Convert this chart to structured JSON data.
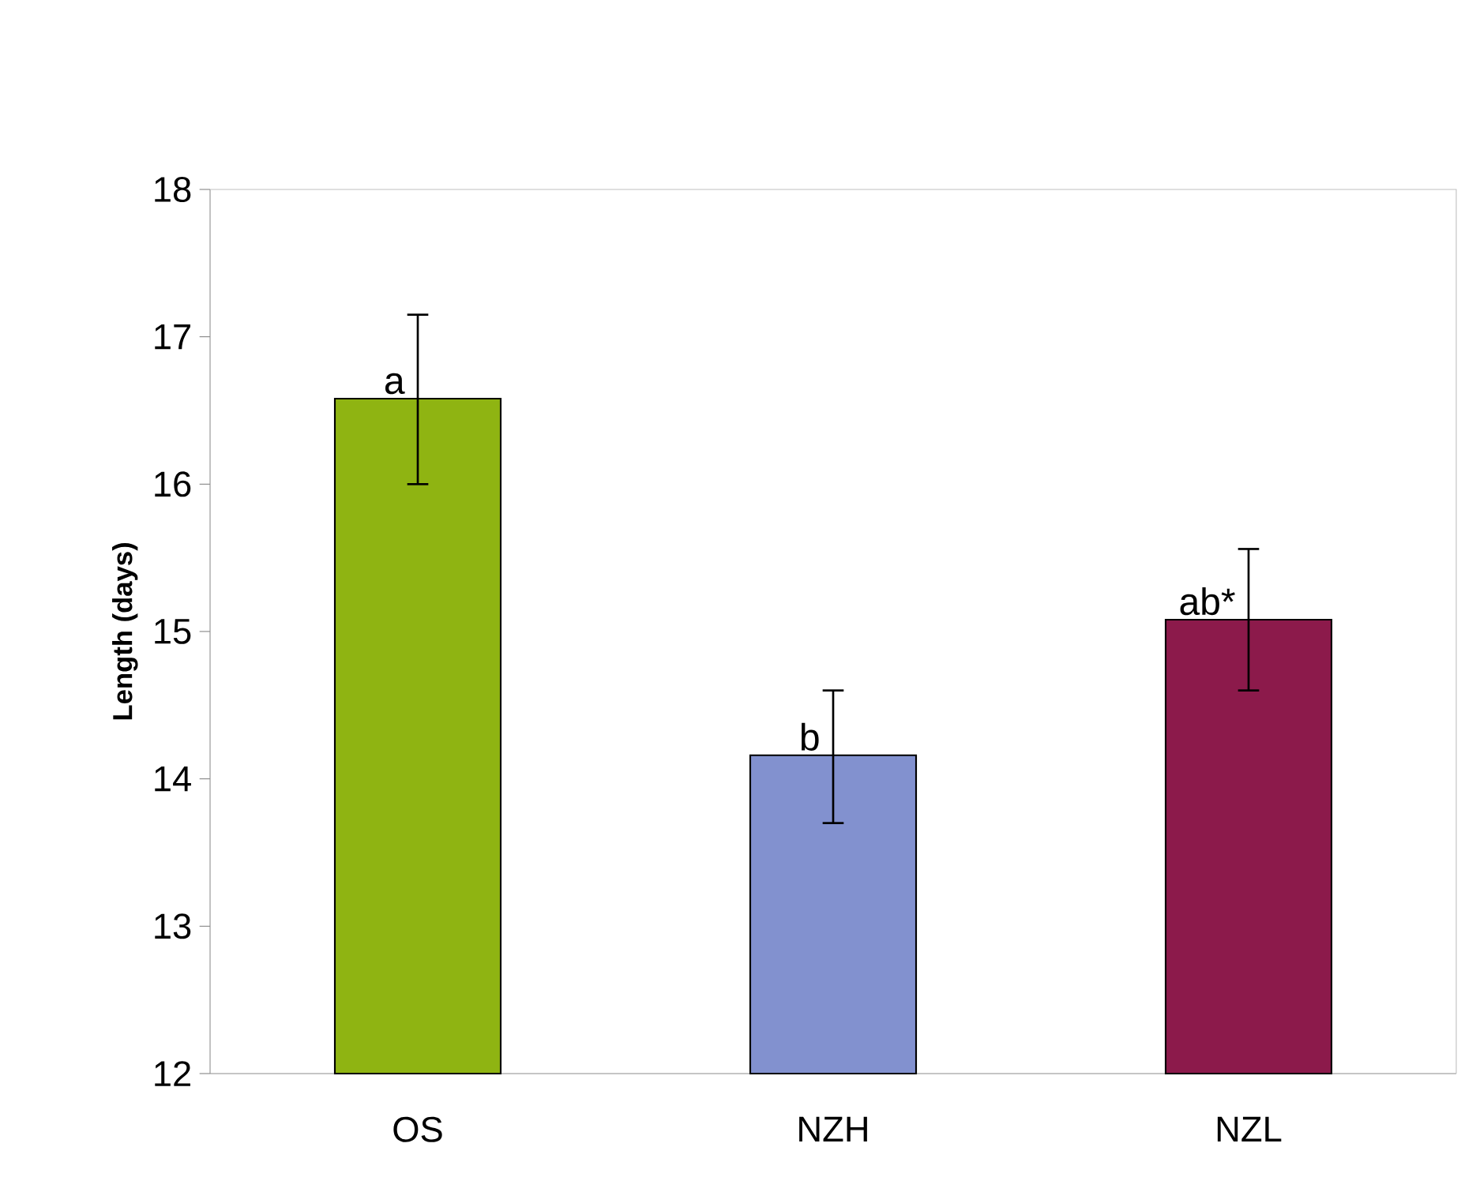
{
  "chart_data": {
    "type": "bar",
    "ylabel": "Length (days)",
    "categories": [
      "OS",
      "NZH",
      "NZL"
    ],
    "values": [
      16.58,
      14.16,
      15.08
    ],
    "colors": [
      "#8fb412",
      "#8291cf",
      "#8c1a4b"
    ],
    "errors": [
      [
        16.0,
        17.15
      ],
      [
        13.7,
        14.6
      ],
      [
        14.6,
        15.56
      ]
    ],
    "ylim": [
      12,
      18
    ],
    "yticks": [
      12,
      13,
      14,
      15,
      16,
      17,
      18
    ],
    "grid": false,
    "annotations": [
      {
        "text": "a",
        "x": "OS",
        "y": 16.58
      },
      {
        "text": "b",
        "x": "NZH",
        "y": 14.16
      },
      {
        "text": "ab*",
        "x": "NZL",
        "y": 15.08
      }
    ]
  }
}
